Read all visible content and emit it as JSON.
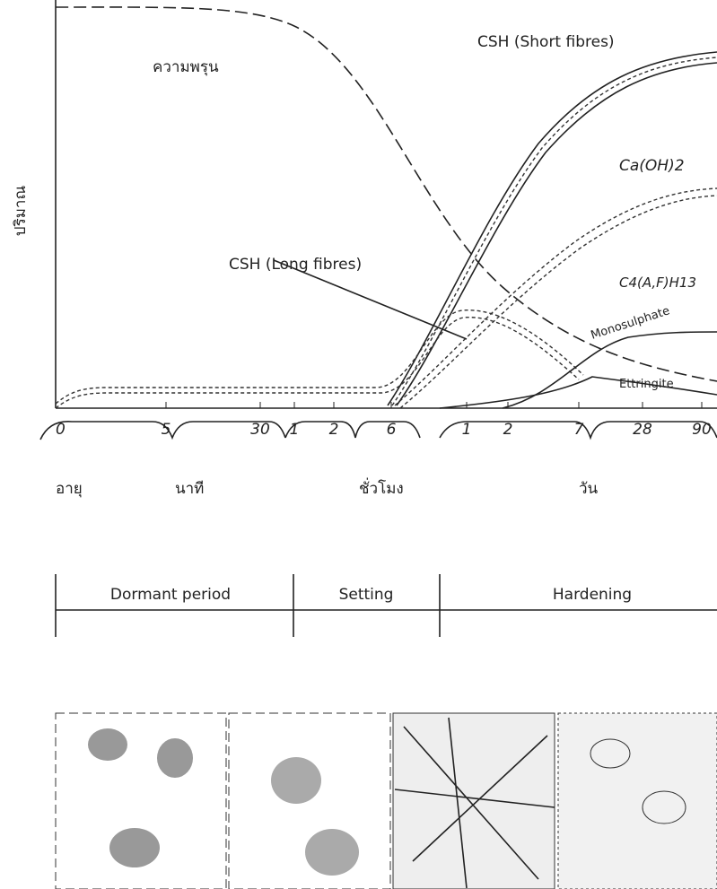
{
  "y_label": "ปริมาณ",
  "curve_labels": {
    "porosity": "ความพรุน",
    "csh_short": "CSH (Short fibres)",
    "caoh2": "Ca(OH)2",
    "csh_long": "CSH (Long fibres)",
    "c4afh13": "C4(A,F)H13",
    "monosulphate": "Monosulphate",
    "ettringite": "Ettringite"
  },
  "x_ticks": [
    "0",
    "5",
    "30",
    "1",
    "2",
    "6",
    "1",
    "2",
    "7",
    "28",
    "90"
  ],
  "x_groups": {
    "age": "อายุ",
    "minutes": "นาที",
    "hours": "ชั่วโมง",
    "days": "วัน"
  },
  "periods": [
    "Dormant period",
    "Setting",
    "Hardening"
  ]
}
